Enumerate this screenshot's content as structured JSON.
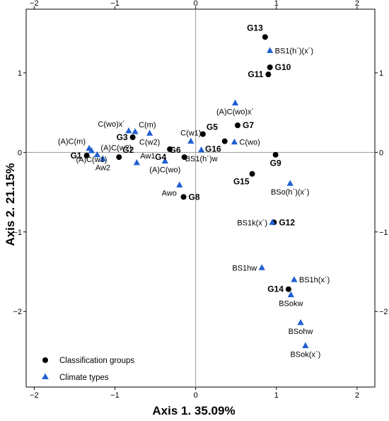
{
  "chart_data": {
    "type": "scatter",
    "xlabel": "Axis 1. 35.09%",
    "ylabel": "Axis 2. 21.15%",
    "xlim": [
      -2.1,
      2.22
    ],
    "ylim": [
      -2.95,
      1.8
    ],
    "xticks": [
      -2,
      -1,
      0,
      1,
      2
    ],
    "yticks": [
      -2,
      -1,
      0,
      1
    ],
    "tick_labels": {
      "x": [
        "−2",
        "−1",
        "0",
        "1",
        "2"
      ],
      "y": [
        "−2",
        "−1",
        "0",
        "1"
      ]
    },
    "reference_lines": {
      "x": 0,
      "y": 0
    },
    "legend": {
      "placement": "bottom-left",
      "entries": [
        {
          "name": "Classification groups",
          "marker": "circle",
          "color": "#000000"
        },
        {
          "name": "Climate types",
          "marker": "triangle",
          "color": "#1f5fd1"
        }
      ]
    },
    "series": [
      {
        "name": "Classification groups",
        "marker": "circle",
        "color": "#000000",
        "label_style": "bold",
        "points": [
          {
            "label": "G1",
            "x": -1.35,
            "y": -0.04,
            "label_pos": "left"
          },
          {
            "label": "G2",
            "x": -0.95,
            "y": -0.06,
            "label_pos": "upper-right"
          },
          {
            "label": "G3",
            "x": -0.78,
            "y": 0.19,
            "label_pos": "left"
          },
          {
            "label": "G4",
            "x": -0.32,
            "y": 0.04,
            "label_pos": "lower-left"
          },
          {
            "label": "G5",
            "x": 0.09,
            "y": 0.23,
            "label_pos": "upper-right"
          },
          {
            "label": "G6",
            "x": -0.14,
            "y": -0.06,
            "label_pos": "upper-left"
          },
          {
            "label": "G7",
            "x": 0.52,
            "y": 0.34,
            "label_pos": "right"
          },
          {
            "label": "G8",
            "x": -0.15,
            "y": -0.56,
            "label_pos": "right"
          },
          {
            "label": "G9",
            "x": 0.99,
            "y": -0.03,
            "label_pos": "below"
          },
          {
            "label": "G10",
            "x": 0.92,
            "y": 1.07,
            "label_pos": "right"
          },
          {
            "label": "G11",
            "x": 0.9,
            "y": 0.98,
            "label_pos": "left"
          },
          {
            "label": "G12",
            "x": 0.97,
            "y": -0.88,
            "label_pos": "right"
          },
          {
            "label": "G13",
            "x": 0.86,
            "y": 1.45,
            "label_pos": "above-left"
          },
          {
            "label": "G14",
            "x": 1.15,
            "y": -1.72,
            "label_pos": "left"
          },
          {
            "label": "G15",
            "x": 0.7,
            "y": -0.27,
            "label_pos": "below-left"
          },
          {
            "label": "G16",
            "x": 0.36,
            "y": 0.14,
            "label_pos": "lower-left"
          }
        ]
      },
      {
        "name": "Climate types",
        "marker": "triangle",
        "color": "#1f5fd1",
        "label_style": "normal",
        "points": [
          {
            "label": "(A)C(m)",
            "x": -1.32,
            "y": 0.05,
            "label_pos": "upper-left"
          },
          {
            "label": "(A)C(w2)",
            "x": -1.22,
            "y": -0.03,
            "label_pos": "upper-right"
          },
          {
            "label": "(A)C(w1)",
            "x": -1.29,
            "y": 0.02,
            "label_pos": "below"
          },
          {
            "label": "Aw2",
            "x": -1.15,
            "y": -0.08,
            "label_pos": "below"
          },
          {
            "label": "C(wo)x´",
            "x": -0.83,
            "y": 0.27,
            "label_pos": "upper-left"
          },
          {
            "label": "C(m)",
            "x": -0.75,
            "y": 0.26,
            "label_pos": "upper-right"
          },
          {
            "label": "C(w2)",
            "x": -0.57,
            "y": 0.24,
            "label_pos": "below"
          },
          {
            "label": "Aw1",
            "x": -0.73,
            "y": -0.13,
            "label_pos": "upper-right"
          },
          {
            "label": "C(w1)",
            "x": -0.06,
            "y": 0.14,
            "label_pos": "above"
          },
          {
            "label": "(A)C(wo)",
            "x": -0.38,
            "y": -0.11,
            "label_pos": "below"
          },
          {
            "label": "Awo",
            "x": -0.2,
            "y": -0.41,
            "label_pos": "below-left"
          },
          {
            "label": "BS1(h´)w",
            "x": 0.07,
            "y": 0.03,
            "label_pos": "below"
          },
          {
            "label": "(A)C(wo)x´",
            "x": 0.49,
            "y": 0.62,
            "label_pos": "below"
          },
          {
            "label": "C(wo)",
            "x": 0.48,
            "y": 0.13,
            "label_pos": "right"
          },
          {
            "label": "BS1(h´)(x´)",
            "x": 0.92,
            "y": 1.28,
            "label_pos": "right"
          },
          {
            "label": "BSo(h´)(x´)",
            "x": 1.17,
            "y": -0.39,
            "label_pos": "below"
          },
          {
            "label": "BS1k(x´)",
            "x": 0.95,
            "y": -0.88,
            "label_pos": "left"
          },
          {
            "label": "BS1hw",
            "x": 0.82,
            "y": -1.45,
            "label_pos": "left"
          },
          {
            "label": "BS1h(x´)",
            "x": 1.22,
            "y": -1.6,
            "label_pos": "right"
          },
          {
            "label": "BSokw",
            "x": 1.18,
            "y": -1.79,
            "label_pos": "below"
          },
          {
            "label": "BSohw",
            "x": 1.3,
            "y": -2.14,
            "label_pos": "below"
          },
          {
            "label": "BSok(x´)",
            "x": 1.36,
            "y": -2.43,
            "label_pos": "below"
          }
        ]
      }
    ]
  }
}
